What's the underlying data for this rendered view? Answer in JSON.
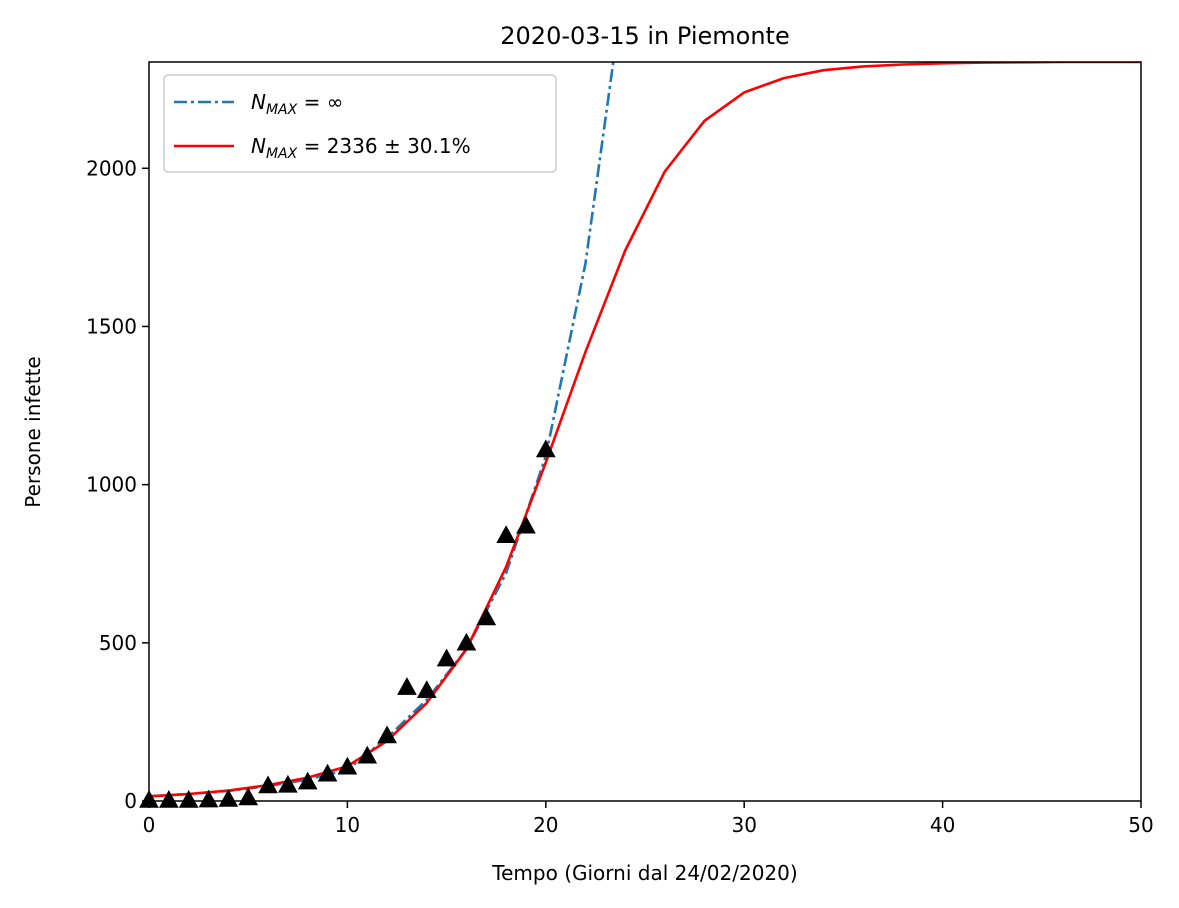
{
  "chart_data": {
    "type": "line",
    "title": "2020-03-15 in Piemonte",
    "xlabel": "Tempo (Giorni dal 24/02/2020)",
    "ylabel": "Persone infette",
    "xlim": [
      0,
      50
    ],
    "ylim": [
      0,
      2336
    ],
    "xticks": [
      0,
      10,
      20,
      30,
      40,
      50
    ],
    "yticks": [
      0,
      500,
      1000,
      1500,
      2000
    ],
    "grid": false,
    "legend_position": "upper-left",
    "series": [
      {
        "name": "N_MAX = ∞",
        "legend_main": "N",
        "legend_sub": "MAX",
        "legend_rest": " = ∞",
        "style": "dashdot",
        "color": "#1f77b4",
        "model": "exponential",
        "x": [
          0,
          2,
          4,
          6,
          8,
          10,
          12,
          14,
          16,
          18,
          20,
          22,
          23.4
        ],
        "y": [
          15,
          22,
          32,
          47,
          68,
          99,
          200,
          320,
          480,
          720,
          1090,
          1700,
          2336
        ]
      },
      {
        "name": "N_MAX = 2336 ± 30.1%",
        "legend_main": "N",
        "legend_sub": "MAX",
        "legend_rest": " = 2336 ± 30.1%",
        "style": "solid",
        "color": "#ff0000",
        "model": "logistic",
        "x": [
          0,
          2,
          4,
          6,
          8,
          10,
          12,
          14,
          16,
          18,
          20,
          22,
          24,
          26,
          28,
          30,
          32,
          34,
          36,
          38,
          40,
          42,
          44,
          46,
          48,
          50
        ],
        "y": [
          15,
          22,
          33,
          50,
          74,
          110,
          190,
          310,
          480,
          740,
          1070,
          1420,
          1740,
          1990,
          2150,
          2240,
          2285,
          2310,
          2322,
          2328,
          2332,
          2334,
          2335,
          2336,
          2336,
          2336
        ]
      },
      {
        "name": "observed",
        "style": "markers",
        "marker": "triangle",
        "color": "#000000",
        "x": [
          0,
          1,
          2,
          3,
          4,
          5,
          6,
          7,
          8,
          9,
          10,
          11,
          12,
          13,
          14,
          15,
          16,
          17,
          18,
          19,
          20
        ],
        "y": [
          3,
          3,
          3,
          4,
          6,
          11,
          49,
          51,
          61,
          86,
          108,
          143,
          207,
          360,
          350,
          450,
          500,
          580,
          840,
          870,
          1111
        ]
      }
    ]
  }
}
